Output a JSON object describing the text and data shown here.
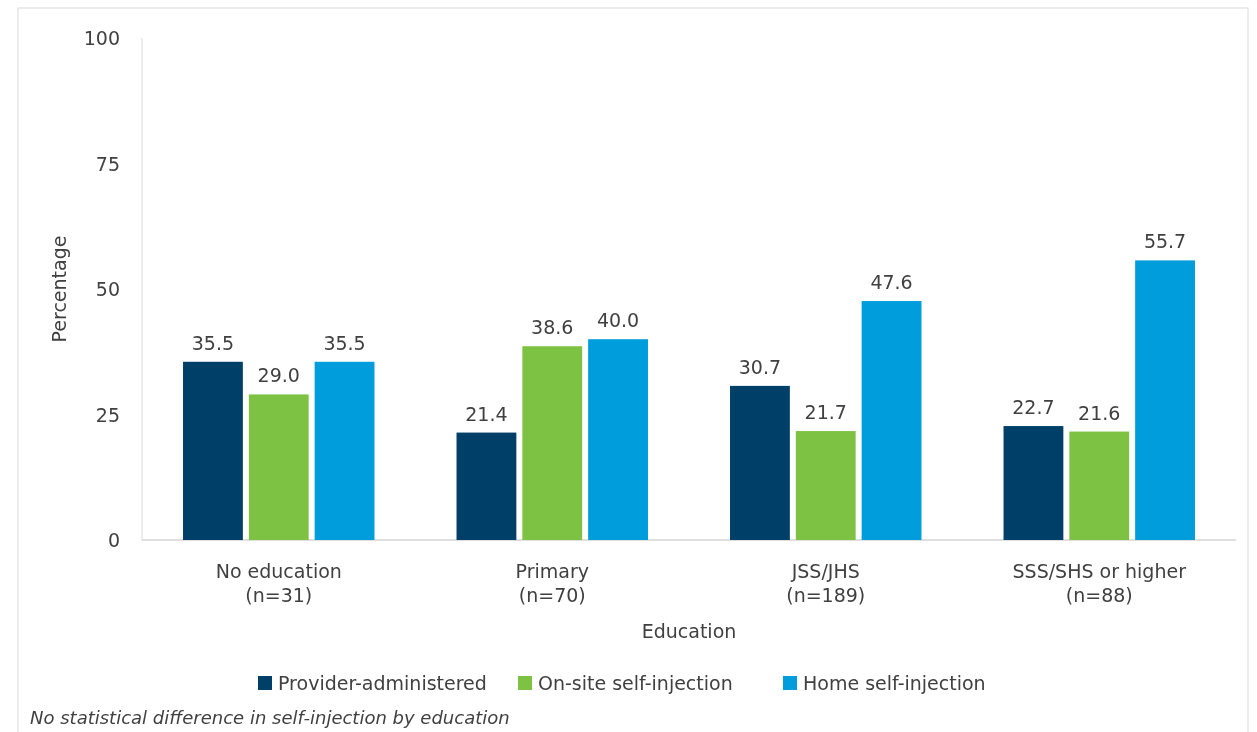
{
  "chart_data": {
    "type": "bar",
    "xlabel": "Education",
    "ylabel": "Percentage",
    "categories": [
      "No education\n(n=31)",
      "Primary\n(n=70)",
      "JSS/JHS\n(n=189)",
      "SSS/SHS or higher\n(n=88)"
    ],
    "series": [
      {
        "name": "Provider-administered",
        "color": "#004068",
        "values": [
          35.5,
          21.4,
          30.7,
          22.7
        ],
        "value_labels": [
          "35.5",
          "21.4",
          "30.7",
          "22.7"
        ]
      },
      {
        "name": "On-site self-injection",
        "color": "#7dc242",
        "values": [
          29.0,
          38.6,
          21.7,
          21.6
        ],
        "value_labels": [
          "29.0",
          "38.6",
          "21.7",
          "21.6"
        ]
      },
      {
        "name": "Home self-injection",
        "color": "#009ddc",
        "values": [
          35.5,
          40.0,
          47.6,
          55.7
        ],
        "value_labels": [
          "35.5",
          "40.0",
          "47.6",
          "55.7"
        ]
      }
    ],
    "ylim": [
      0,
      100
    ],
    "yticks": [
      0,
      25,
      50,
      75,
      100
    ],
    "grid": false,
    "legend": "bottom",
    "annotations": [
      "No statistical difference in self-injection by education"
    ]
  }
}
